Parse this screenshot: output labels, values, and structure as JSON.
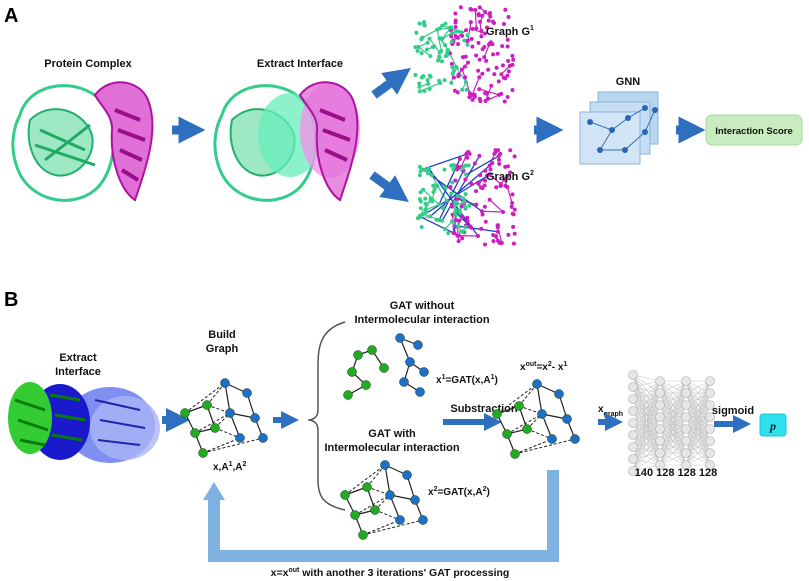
{
  "panel_a": {
    "letter": "A",
    "protein_complex": "Protein Complex",
    "extract_interface": "Extract Interface",
    "graph1": "Graph G",
    "graph1_sup": "1",
    "graph2": "Graph G",
    "graph2_sup": "2",
    "gnn": "GNN",
    "interaction_score": "Interaction Score"
  },
  "panel_b": {
    "letter": "B",
    "extract_interface_l1": "Extract",
    "extract_interface_l2": "Interface",
    "build_graph_l1": "Build",
    "build_graph_l2": "Graph",
    "graph_inputs": "x,A",
    "graph_inputs_sup1": "1",
    "graph_inputs_sep": ",A",
    "graph_inputs_sup2": "2",
    "gat_without_l1": "GAT without",
    "gat_without_l2": "Intermolecular interaction",
    "gat_with_l1": "GAT with",
    "gat_with_l2": "Intermolecular interaction",
    "x1_eq": "x",
    "x1_sup": "1",
    "x1_rhs": "=GAT(x,A",
    "x1_rhs_sup": "1",
    "x1_close": ")",
    "x2_eq": "x",
    "x2_sup": "2",
    "x2_rhs": "=GAT(x,A",
    "x2_rhs_sup": "2",
    "x2_close": ")",
    "xout_eq": "x",
    "xout_sup": "out",
    "xout_rhs": "=x",
    "xout_rhs_sup": "2",
    "xout_minus": "- x",
    "xout_minus_sup": "1",
    "substraction": "Substraction",
    "xgraph": "x",
    "xgraph_sub": "graph",
    "layer_sizes": "140 128 128 128",
    "sigmoid": "sigmoid",
    "output": "p",
    "loop_text_a": "x=x",
    "loop_text_sup": "out",
    "loop_text_b": "  with another 3 iterations' GAT processing"
  },
  "colors": {
    "arrow_blue": "#2f6fbf",
    "loop_blue": "#7fb2e0",
    "magenta": "#cc1fbf",
    "mint": "#33cc88",
    "node_green": "#22aa22",
    "node_blue": "#1f6fc8",
    "interaction_box": "#c8ecc0",
    "output_box": "#2fe0f0"
  }
}
